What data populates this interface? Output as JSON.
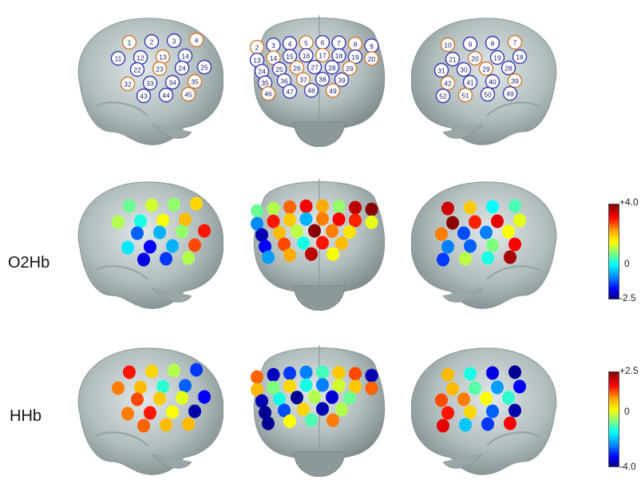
{
  "rows": [
    {
      "label": ""
    },
    {
      "label": "O2Hb"
    },
    {
      "label": "HHb"
    }
  ],
  "views": [
    "left-lateral",
    "frontal",
    "right-lateral"
  ],
  "channels": {
    "left": [
      "1",
      "2",
      "3",
      "4",
      "11",
      "12",
      "13",
      "14",
      "22",
      "23",
      "24",
      "25",
      "32",
      "33",
      "34",
      "35",
      "43",
      "44",
      "45"
    ],
    "front": [
      "2",
      "3",
      "4",
      "5",
      "6",
      "7",
      "8",
      "9",
      "13",
      "14",
      "15",
      "16",
      "17",
      "18",
      "19",
      "20",
      "24",
      "25",
      "26",
      "27",
      "28",
      "29",
      "35",
      "36",
      "37",
      "38",
      "39",
      "46",
      "47",
      "48",
      "49"
    ],
    "right": [
      "7",
      "8",
      "9",
      "10",
      "18",
      "19",
      "20",
      "21",
      "28",
      "29",
      "30",
      "31",
      "39",
      "40",
      "41",
      "42",
      "49",
      "50",
      "51",
      "52"
    ]
  },
  "colorbars": {
    "o2hb": {
      "max": "+4.0",
      "mid": "0",
      "min": "-2.5"
    },
    "hhb": {
      "max": "+2.5",
      "mid": "0",
      "min": "-4.0"
    }
  },
  "colors": {
    "brain": "#aab5b6",
    "colormap": [
      "#00007f",
      "#0000ff",
      "#0080ff",
      "#00ffff",
      "#7fff7f",
      "#ffff00",
      "#ffa500",
      "#ff0000",
      "#7f0000"
    ]
  },
  "activation": {
    "o2hb": {
      "left": [
        0.48,
        0.58,
        0.52,
        0.68,
        0.55,
        0.4,
        0.62,
        0.72,
        0.22,
        0.3,
        0.52,
        0.86,
        0.35,
        0.12,
        0.3,
        0.82,
        0.1,
        0.18,
        0.55
      ],
      "front": [
        0.48,
        0.55,
        0.8,
        0.88,
        0.74,
        0.52,
        0.94,
        0.99,
        0.26,
        0.86,
        0.7,
        0.3,
        0.78,
        0.88,
        0.85,
        0.6,
        0.05,
        0.72,
        0.56,
        0.99,
        0.78,
        0.66,
        0.12,
        0.82,
        0.4,
        0.86,
        0.72,
        0.28,
        0.74,
        0.94,
        0.62
      ],
      "right": [
        0.45,
        0.38,
        0.7,
        0.92,
        0.6,
        0.9,
        0.85,
        0.99,
        0.62,
        0.25,
        0.2,
        0.78,
        0.88,
        0.5,
        0.22,
        0.25,
        0.96,
        0.4,
        0.56,
        0.18
      ]
    },
    "hhb": {
      "left": [
        0.86,
        0.68,
        0.55,
        0.18,
        0.78,
        0.72,
        0.42,
        0.22,
        0.82,
        0.7,
        0.6,
        0.12,
        0.78,
        0.86,
        0.62,
        0.04,
        0.8,
        0.72,
        0.72
      ],
      "front": [
        0.8,
        0.06,
        0.18,
        0.25,
        0.44,
        0.7,
        0.82,
        0.05,
        0.72,
        0.5,
        0.68,
        0.4,
        0.25,
        0.58,
        0.7,
        0.8,
        0.05,
        0.4,
        0.02,
        0.55,
        0.08,
        0.48,
        0.02,
        0.2,
        0.68,
        0.05,
        0.55,
        0.02,
        0.62,
        0.45,
        0.78
      ],
      "right": [
        0.02,
        0.1,
        0.4,
        0.72,
        0.12,
        0.28,
        0.46,
        0.72,
        0.42,
        0.62,
        0.78,
        0.82,
        0.04,
        0.22,
        0.68,
        0.86,
        0.88,
        0.18,
        0.32,
        0.9
      ]
    }
  }
}
